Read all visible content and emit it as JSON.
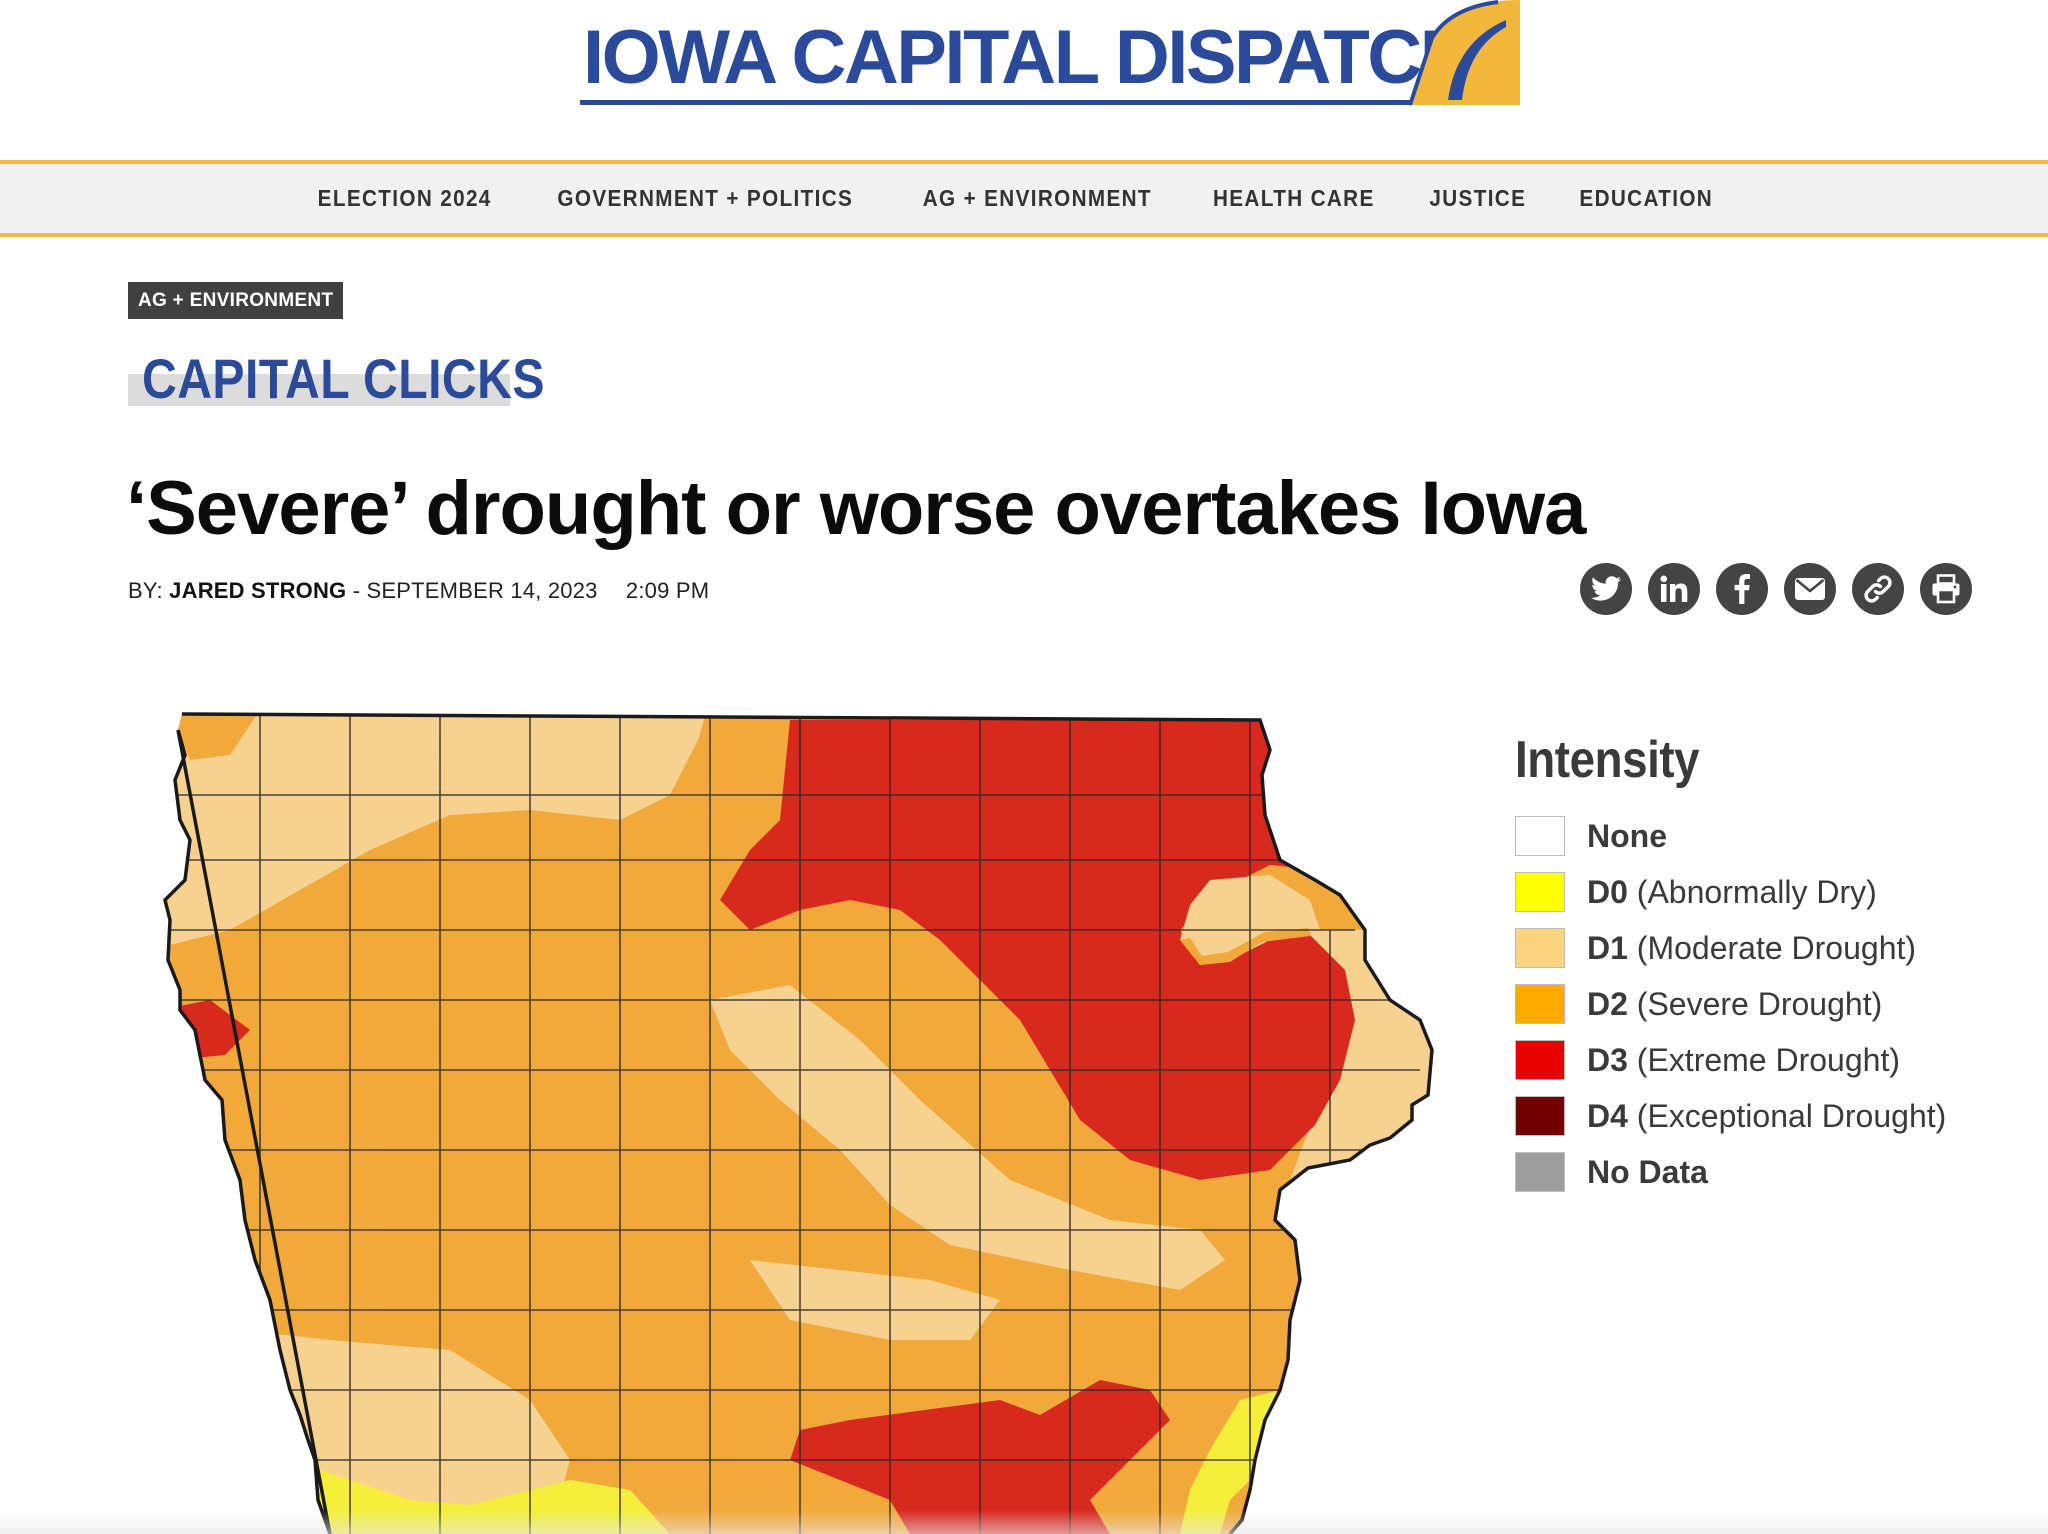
{
  "site": {
    "name": "IOWA CAPITAL DISPATCH",
    "colors": {
      "brand_blue": "#2b4b9a",
      "brand_gold": "#f3b73d"
    }
  },
  "nav": {
    "items": [
      "ELECTION 2024",
      "GOVERNMENT + POLITICS",
      "AG + ENVIRONMENT",
      "HEALTH CARE",
      "JUSTICE",
      "EDUCATION"
    ]
  },
  "article": {
    "category": "AG + ENVIRONMENT",
    "series": "CAPITAL CLICKS",
    "headline": "‘Severe’ drought or worse overtakes Iowa",
    "byline_prefix": "BY:",
    "author": "JARED STRONG",
    "date_separator": "-",
    "date": "SEPTEMBER 14, 2023",
    "time": "2:09 PM"
  },
  "share": {
    "icons": [
      "twitter-icon",
      "linkedin-icon",
      "facebook-icon",
      "email-icon",
      "link-icon",
      "print-icon"
    ]
  },
  "map_legend": {
    "title": "Intensity",
    "items": [
      {
        "code": "None",
        "desc": "",
        "color": "#ffffff"
      },
      {
        "code": "D0",
        "desc": "(Abnormally Dry)",
        "color": "#ffff00"
      },
      {
        "code": "D1",
        "desc": "(Moderate Drought)",
        "color": "#fcd37f"
      },
      {
        "code": "D2",
        "desc": "(Severe Drought)",
        "color": "#ffaa00"
      },
      {
        "code": "D3",
        "desc": "(Extreme Drought)",
        "color": "#e60000"
      },
      {
        "code": "D4",
        "desc": "(Exceptional Drought)",
        "color": "#730000"
      },
      {
        "code": "No Data",
        "desc": "",
        "color": "#9e9e9e"
      }
    ]
  }
}
